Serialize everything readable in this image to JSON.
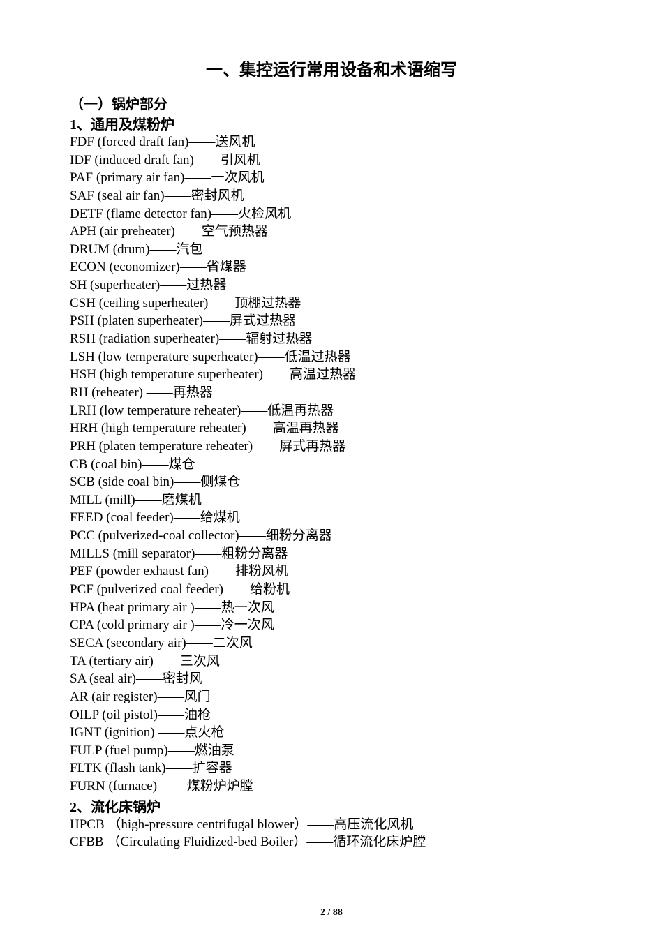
{
  "title": "一、集控运行常用设备和术语缩写",
  "section1_heading": "（一）锅炉部分",
  "subsection1_heading": "1、通用及煤粉炉",
  "subsection2_heading": "2、流化床锅炉",
  "dash": "――",
  "page_number": "2 / 88",
  "terms1": [
    {
      "abbr": "FDF",
      "full": "(forced draft fan)",
      "trans": "送风机"
    },
    {
      "abbr": "IDF",
      "full": "(induced draft fan)",
      "trans": "引风机"
    },
    {
      "abbr": "PAF",
      "full": "(primary air fan)",
      "trans": "一次风机"
    },
    {
      "abbr": "SAF",
      "full": "(seal air fan)",
      "trans": "密封风机"
    },
    {
      "abbr": "DETF",
      "full": "(flame detector fan)",
      "trans": "火检风机"
    },
    {
      "abbr": "APH",
      "full": "(air preheater)",
      "trans": "空气预热器"
    },
    {
      "abbr": "DRUM",
      "full": "(drum)",
      "trans": "汽包"
    },
    {
      "abbr": "ECON",
      "full": "(economizer)",
      "trans": "省煤器"
    },
    {
      "abbr": "SH",
      "full": "(superheater)",
      "trans": "过热器"
    },
    {
      "abbr": "CSH",
      "full": "(ceiling superheater)",
      "trans": "顶棚过热器"
    },
    {
      "abbr": "PSH",
      "full": "(platen superheater)",
      "trans": "屏式过热器"
    },
    {
      "abbr": "RSH",
      "full": "(radiation superheater)",
      "trans": "辐射过热器"
    },
    {
      "abbr": "LSH",
      "full": "(low temperature superheater)",
      "trans": "低温过热器"
    },
    {
      "abbr": "HSH",
      "full": "(high temperature superheater)",
      "trans": "高温过热器"
    },
    {
      "abbr": "RH",
      "full": "(reheater) ",
      "trans": "再热器"
    },
    {
      "abbr": "LRH",
      "full": "(low temperature reheater)",
      "trans": "低温再热器"
    },
    {
      "abbr": "HRH",
      "full": "(high temperature reheater)",
      "trans": "高温再热器"
    },
    {
      "abbr": "PRH",
      "full": "(platen temperature reheater)",
      "trans": "屏式再热器"
    },
    {
      "abbr": "CB",
      "full": "(coal bin)",
      "trans": "煤仓"
    },
    {
      "abbr": "SCB",
      "full": "(side coal bin)",
      "trans": "侧煤仓"
    },
    {
      "abbr": "MILL",
      "full": "(mill)",
      "trans": "磨煤机"
    },
    {
      "abbr": "FEED",
      "full": "(coal feeder)",
      "trans": "给煤机"
    },
    {
      "abbr": "PCC",
      "full": "(pulverized-coal collector)",
      "trans": "细粉分离器"
    },
    {
      "abbr": "MILLS",
      "full": "(mill separator)",
      "trans": "粗粉分离器"
    },
    {
      "abbr": "PEF",
      "full": "(powder exhaust fan)",
      "trans": "排粉风机"
    },
    {
      "abbr": "PCF",
      "full": "(pulverized coal feeder)",
      "trans": "给粉机"
    },
    {
      "abbr": "HPA",
      "full": "(heat primary air )",
      "trans": "热一次风"
    },
    {
      "abbr": "CPA",
      "full": "(cold primary air )",
      "trans": "冷一次风"
    },
    {
      "abbr": "SECA",
      "full": "(secondary air)",
      "trans": "二次风"
    },
    {
      "abbr": "TA",
      "full": "(tertiary air)",
      "trans": "三次风"
    },
    {
      "abbr": "SA",
      "full": "(seal air)",
      "trans": "密封风"
    },
    {
      "abbr": "AR",
      "full": "(air register)",
      "trans": "风门"
    },
    {
      "abbr": "OILP",
      "full": "(oil pistol)",
      "trans": "油枪"
    },
    {
      "abbr": "IGNT",
      "full": "(ignition) ",
      "trans": "点火枪"
    },
    {
      "abbr": "FULP",
      "full": "(fuel pump)",
      "trans": "燃油泵"
    },
    {
      "abbr": "FLTK",
      "full": "(flash tank)",
      "trans": "扩容器"
    },
    {
      "abbr": "FURN",
      "full": "(furnace) ",
      "trans": "煤粉炉炉膛"
    }
  ],
  "terms2": [
    {
      "abbr": "HPCB",
      "full": "（high-pressure centrifugal blower）",
      "trans": "高压流化风机"
    },
    {
      "abbr": "CFBB",
      "full": "（Circulating Fluidized-bed Boiler）",
      "trans": "循环流化床炉膛"
    }
  ]
}
